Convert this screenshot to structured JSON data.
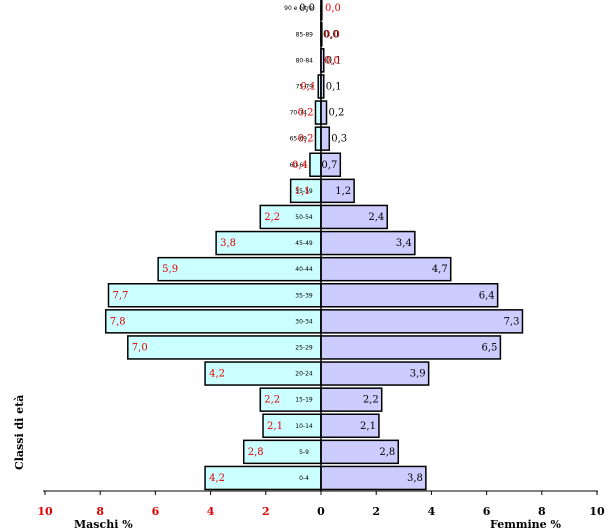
{
  "chart_data": {
    "type": "bar",
    "orientation": "horizontal",
    "layout": "population-pyramid",
    "ylabel": "Classi di età",
    "series": [
      {
        "name": "Maschi %",
        "color": "#ccffff",
        "side": "left",
        "values": [
          4.2,
          2.8,
          2.1,
          2.2,
          4.2,
          7.0,
          7.8,
          7.7,
          5.9,
          3.8,
          2.2,
          1.1,
          0.4,
          0.2,
          0.2,
          0.1,
          0.0,
          0.0,
          0.0
        ],
        "labels": [
          "4,2",
          "2,8",
          "2,1",
          "2,2",
          "4,2",
          "7,0",
          "7,8",
          "7,7",
          "5,9",
          "3,8",
          "2,2",
          "1,1",
          "0,4",
          "0,2",
          "0,2",
          "0,1",
          "",
          "",
          "0,0"
        ]
      },
      {
        "name": "Femmine %",
        "color": "#ccccff",
        "side": "right",
        "values": [
          3.8,
          2.8,
          2.1,
          2.2,
          3.9,
          6.5,
          7.3,
          6.4,
          4.7,
          3.4,
          2.4,
          1.2,
          0.7,
          0.3,
          0.2,
          0.1,
          0.1,
          0.0,
          0.0
        ],
        "labels": [
          "3,8",
          "2,8",
          "2,1",
          "2,2",
          "3,9",
          "6,5",
          "7,3",
          "6,4",
          "4,7",
          "3,4",
          "2,4",
          "1,2",
          "0,7",
          "0,3",
          "0,2",
          "0,1",
          "0,1",
          "0,0",
          "0,0"
        ]
      }
    ],
    "extra_labels": {
      "male_85_89": "0,0",
      "male_80_84": "0,0"
    },
    "categories": [
      "0-4",
      "5-9",
      "10-14",
      "15-19",
      "20-24",
      "25-29",
      "30-34",
      "35-39",
      "40-44",
      "45-49",
      "50-54",
      "55-59",
      "60-64",
      "65-69",
      "70-74",
      "75-79",
      "80-84",
      "85-89",
      "90 e oltre"
    ],
    "xlim": [
      -10,
      10
    ],
    "x_tick_labels": [
      "10",
      "8",
      "6",
      "4",
      "2",
      "0",
      "2",
      "4",
      "6",
      "8",
      "10"
    ],
    "grid": false,
    "legend": "none"
  }
}
